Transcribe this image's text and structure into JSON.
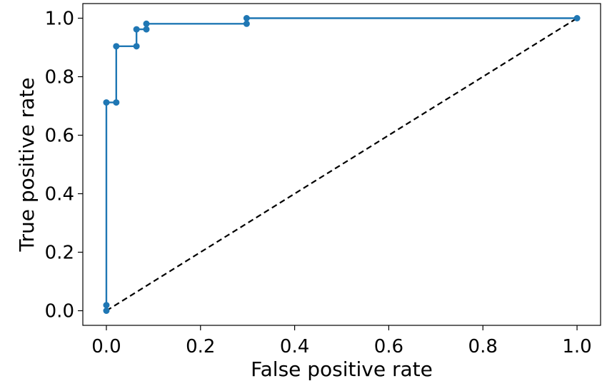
{
  "chart_data": {
    "type": "line",
    "title": "",
    "xlabel": "False positive rate",
    "ylabel": "True positive rate",
    "xlim": [
      -0.05,
      1.05
    ],
    "ylim": [
      -0.05,
      1.05
    ],
    "xticks": [
      0.0,
      0.2,
      0.4,
      0.6,
      0.8,
      1.0
    ],
    "xtick_labels": [
      "0.0",
      "0.2",
      "0.4",
      "0.6",
      "0.8",
      "1.0"
    ],
    "yticks": [
      0.0,
      0.2,
      0.4,
      0.6,
      0.8,
      1.0
    ],
    "ytick_labels": [
      "0.0",
      "0.2",
      "0.4",
      "0.6",
      "0.8",
      "1.0"
    ],
    "grid": false,
    "series": [
      {
        "style": "solid-with-markers",
        "color": "#1f77b4",
        "x": [
          0.0,
          0.0,
          0.0,
          0.021,
          0.021,
          0.064,
          0.064,
          0.085,
          0.085,
          0.298,
          0.298,
          1.0
        ],
        "y": [
          0.0,
          0.019,
          0.712,
          0.712,
          0.904,
          0.904,
          0.962,
          0.962,
          0.981,
          0.981,
          1.0,
          1.0
        ]
      },
      {
        "style": "dashed",
        "color": "#000000",
        "x": [
          0.0,
          1.0
        ],
        "y": [
          0.0,
          1.0
        ]
      }
    ]
  }
}
